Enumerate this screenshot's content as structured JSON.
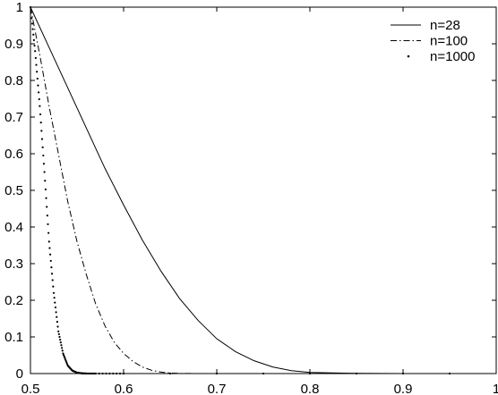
{
  "chart_data": {
    "type": "line",
    "title": "",
    "xlabel": "",
    "ylabel": "",
    "xlim": [
      0.5,
      1
    ],
    "ylim": [
      0,
      1
    ],
    "grid": false,
    "legend_position": "top-right",
    "x_ticks": [
      "0.5",
      "0.6",
      "0.7",
      "0.8",
      "0.9",
      "1"
    ],
    "y_ticks": [
      "0",
      "0.1",
      "0.2",
      "0.3",
      "0.4",
      "0.5",
      "0.6",
      "0.7",
      "0.8",
      "0.9",
      "1"
    ],
    "series": [
      {
        "name": "n=28",
        "style": "solid",
        "x": [
          0.5,
          0.52,
          0.54,
          0.56,
          0.58,
          0.6,
          0.62,
          0.64,
          0.66,
          0.68,
          0.7,
          0.72,
          0.74,
          0.76,
          0.78,
          0.8,
          0.85,
          0.9,
          1.0
        ],
        "y": [
          1.0,
          0.89,
          0.78,
          0.67,
          0.56,
          0.46,
          0.365,
          0.28,
          0.205,
          0.145,
          0.095,
          0.06,
          0.035,
          0.018,
          0.008,
          0.003,
          0.0005,
          0.0,
          0.0
        ]
      },
      {
        "name": "n=100",
        "style": "dashdot",
        "x": [
          0.5,
          0.51,
          0.52,
          0.53,
          0.54,
          0.55,
          0.56,
          0.57,
          0.58,
          0.59,
          0.6,
          0.61,
          0.62,
          0.63,
          0.64,
          0.65,
          0.66,
          0.68,
          1.0
        ],
        "y": [
          1.0,
          0.87,
          0.73,
          0.6,
          0.47,
          0.36,
          0.27,
          0.19,
          0.13,
          0.085,
          0.055,
          0.033,
          0.018,
          0.009,
          0.004,
          0.0015,
          0.0005,
          0.0,
          0.0
        ]
      },
      {
        "name": "n=1000",
        "style": "dotted",
        "x": [
          0.5,
          0.505,
          0.51,
          0.515,
          0.52,
          0.525,
          0.53,
          0.535,
          0.54,
          0.545,
          0.55,
          0.555,
          0.56,
          0.57,
          0.6,
          1.0
        ],
        "y": [
          1.0,
          0.88,
          0.73,
          0.55,
          0.36,
          0.22,
          0.115,
          0.055,
          0.022,
          0.008,
          0.0025,
          0.0007,
          0.0002,
          0.0,
          0.0,
          0.0
        ]
      }
    ]
  }
}
